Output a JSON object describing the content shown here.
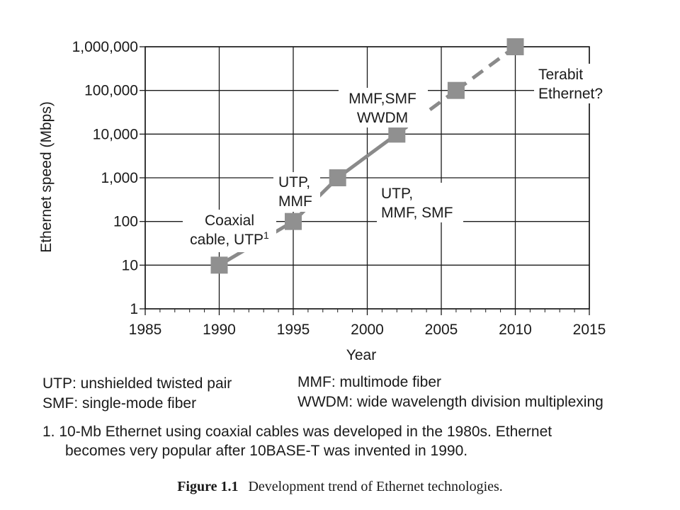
{
  "chart_data": {
    "type": "line",
    "xlabel": "Year",
    "ylabel": "Ethernet speed (Mbps)",
    "x_ticks": [
      "1985",
      "1990",
      "1995",
      "2000",
      "2005",
      "2010",
      "2015"
    ],
    "y_ticks": [
      "1",
      "10",
      "100",
      "1,000",
      "10,000",
      "100,000",
      "1,000,000"
    ],
    "xlim": [
      1985,
      2015
    ],
    "ylim": [
      1,
      1000000
    ],
    "y_scale": "log",
    "grid": true,
    "series": [
      {
        "x": [
          1990,
          1995,
          1998,
          2002,
          2006,
          2010
        ],
        "y": [
          10,
          100,
          1000,
          10000,
          100000,
          1000000
        ],
        "style": [
          "solid",
          "solid",
          "solid",
          "dashed",
          "dashed"
        ],
        "color": "#8a8a8a",
        "marker_color": "#909090"
      }
    ],
    "annotations": [
      {
        "id": "coax",
        "lines": [
          "Coaxial",
          "cable, UTP"
        ],
        "superscript": "1"
      },
      {
        "id": "utp-mmf",
        "lines": [
          "UTP,",
          "MMF"
        ]
      },
      {
        "id": "utp-mmf-smf",
        "lines": [
          "UTP,",
          "MMF, SMF"
        ]
      },
      {
        "id": "mmf-smf-wwdm",
        "lines": [
          "MMF,SMF",
          "WWDM"
        ]
      },
      {
        "id": "terabit",
        "lines": [
          "Terabit",
          "Ethernet?"
        ]
      }
    ]
  },
  "legend": {
    "left": [
      "UTP: unshielded twisted pair",
      "SMF: single-mode fiber"
    ],
    "right": [
      "MMF: multimode fiber",
      "WWDM: wide wavelength division multiplexing"
    ]
  },
  "footnote": {
    "line1": "1. 10-Mb Ethernet using coaxial cables was developed in the 1980s.  Ethernet",
    "line2": "becomes very popular after 10BASE-T was invented in 1990."
  },
  "caption": {
    "label": "Figure 1.1",
    "text": "Development trend of Ethernet technologies."
  }
}
